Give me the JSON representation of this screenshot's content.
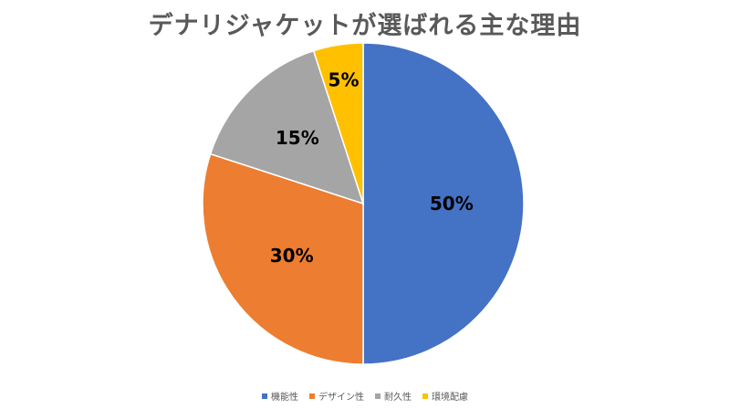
{
  "chart_data": {
    "type": "pie",
    "title": "デナリジャケットが選ばれる主な理由",
    "categories": [
      "機能性",
      "デザイン性",
      "耐久性",
      "環境配慮"
    ],
    "values": [
      50,
      30,
      15,
      5
    ],
    "data_labels": [
      "50%",
      "30%",
      "15%",
      "5%"
    ],
    "colors": [
      "#4472C4",
      "#ED7D31",
      "#A5A5A5",
      "#FFC000"
    ],
    "start_angle_deg": 0,
    "direction": "clockwise",
    "legend_position": "bottom"
  }
}
